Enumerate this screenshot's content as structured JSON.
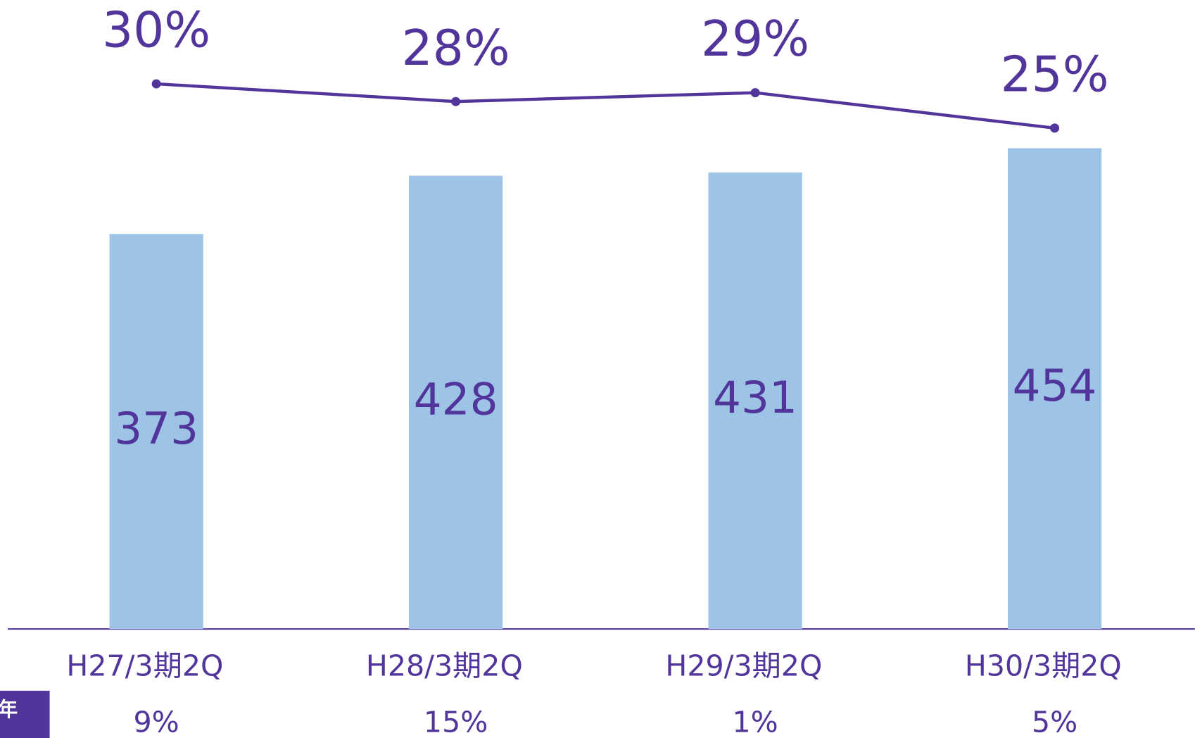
{
  "chart_data": {
    "type": "bar",
    "categories": [
      "H27/3期2Q",
      "H28/3期2Q",
      "H29/3期2Q",
      "H30/3期2Q"
    ],
    "series": [
      {
        "type": "bar",
        "color": "#9dc3e6",
        "values": [
          373,
          428,
          431,
          454
        ]
      },
      {
        "type": "line",
        "color": "#52359a",
        "values": [
          30,
          28,
          29,
          25
        ],
        "value_labels": [
          "30%",
          "28%",
          "29%",
          "25%"
        ]
      }
    ],
    "growth_row": {
      "label": "年",
      "values": [
        9,
        15,
        1,
        5
      ],
      "value_labels": [
        "9%",
        "15%",
        "1%",
        "5%"
      ]
    }
  }
}
